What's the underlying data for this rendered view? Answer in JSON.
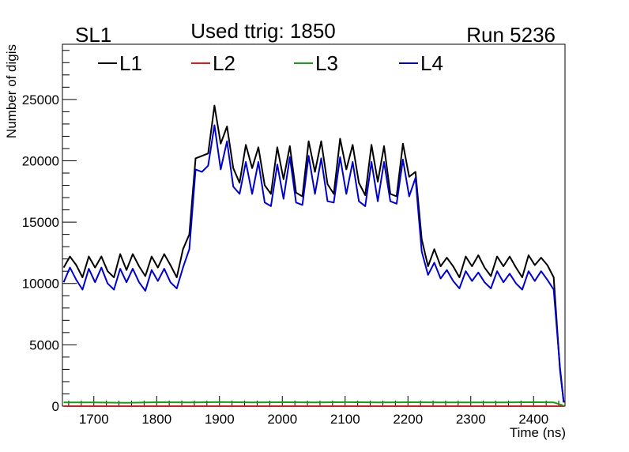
{
  "chart_data": {
    "type": "line",
    "header": {
      "left": "SL1",
      "center": "Used ttrig: 1850",
      "right": "Run 5236"
    },
    "xlabel": "Time (ns)",
    "ylabel": "Number of digis",
    "xlim": [
      1650,
      2450
    ],
    "ylim": [
      0,
      29500
    ],
    "xticks": [
      1700,
      1800,
      1900,
      2000,
      2100,
      2200,
      2300,
      2400
    ],
    "yticks": [
      0,
      5000,
      10000,
      15000,
      20000,
      25000
    ],
    "legend_position": "top",
    "series": [
      {
        "name": "L1",
        "color": "#000000",
        "x": [
          1652,
          1662,
          1672,
          1682,
          1692,
          1702,
          1712,
          1722,
          1732,
          1742,
          1752,
          1762,
          1772,
          1782,
          1792,
          1802,
          1812,
          1822,
          1832,
          1842,
          1852,
          1862,
          1872,
          1882,
          1892,
          1902,
          1912,
          1922,
          1932,
          1942,
          1952,
          1962,
          1972,
          1982,
          1992,
          2002,
          2012,
          2022,
          2032,
          2042,
          2052,
          2062,
          2072,
          2082,
          2092,
          2102,
          2112,
          2122,
          2132,
          2142,
          2152,
          2162,
          2172,
          2182,
          2192,
          2202,
          2212,
          2222,
          2232,
          2242,
          2252,
          2262,
          2272,
          2282,
          2292,
          2302,
          2312,
          2322,
          2332,
          2342,
          2352,
          2362,
          2372,
          2382,
          2392,
          2402,
          2412,
          2422,
          2432,
          2442,
          2448
        ],
        "y": [
          11300,
          12200,
          11500,
          10500,
          12200,
          11300,
          12200,
          11000,
          10500,
          12400,
          11100,
          12400,
          11400,
          10600,
          12200,
          11300,
          12400,
          11500,
          10500,
          12800,
          14000,
          20200,
          20400,
          20600,
          24500,
          21400,
          22800,
          19400,
          18200,
          21300,
          19400,
          21100,
          18000,
          17300,
          21100,
          18500,
          21200,
          17400,
          17100,
          21600,
          19100,
          21600,
          18100,
          17300,
          21800,
          19300,
          21300,
          18200,
          17200,
          21300,
          18300,
          21200,
          17300,
          17100,
          21400,
          18700,
          19100,
          13600,
          11400,
          12800,
          11400,
          12100,
          11400,
          10500,
          12200,
          11400,
          12300,
          11300,
          10600,
          12200,
          11400,
          12200,
          11300,
          10500,
          12300,
          11500,
          12100,
          11500,
          10500,
          3000,
          300
        ]
      },
      {
        "name": "L2",
        "color": "#e0191b",
        "x": [
          1652,
          2448
        ],
        "y": [
          0,
          0
        ]
      },
      {
        "name": "L3",
        "color": "#1a9c1a",
        "x": [
          1652,
          1702,
          1752,
          1802,
          1852,
          1902,
          1952,
          2002,
          2052,
          2102,
          2152,
          2202,
          2252,
          2302,
          2352,
          2402,
          2432,
          2442,
          2448
        ],
        "y": [
          300,
          300,
          280,
          320,
          300,
          340,
          300,
          320,
          300,
          330,
          300,
          320,
          300,
          310,
          300,
          330,
          300,
          150,
          40
        ]
      },
      {
        "name": "L4",
        "color": "#0000cc",
        "x": [
          1652,
          1662,
          1672,
          1682,
          1692,
          1702,
          1712,
          1722,
          1732,
          1742,
          1752,
          1762,
          1772,
          1782,
          1792,
          1802,
          1812,
          1822,
          1832,
          1842,
          1852,
          1862,
          1872,
          1882,
          1892,
          1902,
          1912,
          1922,
          1932,
          1942,
          1952,
          1962,
          1972,
          1982,
          1992,
          2002,
          2012,
          2022,
          2032,
          2042,
          2052,
          2062,
          2072,
          2082,
          2092,
          2102,
          2112,
          2122,
          2132,
          2142,
          2152,
          2162,
          2172,
          2182,
          2192,
          2202,
          2212,
          2222,
          2232,
          2242,
          2252,
          2262,
          2272,
          2282,
          2292,
          2302,
          2312,
          2322,
          2332,
          2342,
          2352,
          2362,
          2372,
          2382,
          2392,
          2402,
          2412,
          2422,
          2432,
          2442,
          2448
        ],
        "y": [
          10100,
          11300,
          10300,
          9500,
          11200,
          10100,
          11300,
          10000,
          9500,
          11200,
          10100,
          11200,
          10100,
          9400,
          11100,
          10200,
          11200,
          10100,
          9600,
          11300,
          12800,
          19300,
          19100,
          19600,
          22900,
          19300,
          21600,
          17900,
          17300,
          19900,
          17300,
          19900,
          16600,
          16300,
          19700,
          16900,
          20300,
          16600,
          16400,
          20400,
          17300,
          20200,
          16700,
          16600,
          20300,
          17300,
          19900,
          16700,
          16300,
          19900,
          16700,
          19900,
          16700,
          16500,
          20100,
          17100,
          18600,
          12600,
          10700,
          11700,
          10400,
          11100,
          10200,
          9600,
          11000,
          10200,
          10900,
          10100,
          9600,
          11000,
          10100,
          10800,
          10000,
          9500,
          11000,
          10200,
          11000,
          10300,
          9500,
          3200,
          300
        ]
      }
    ]
  }
}
